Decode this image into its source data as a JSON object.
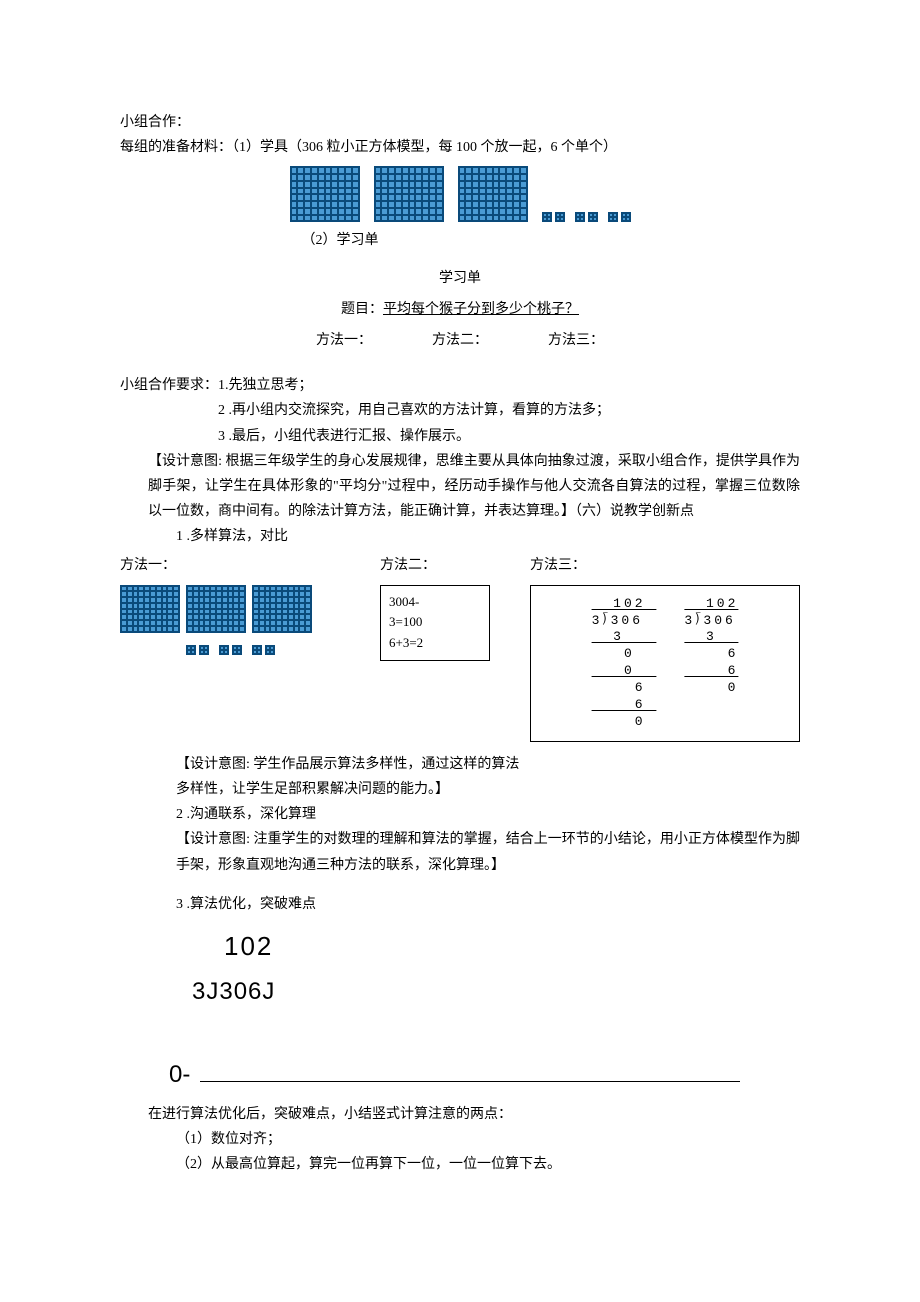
{
  "doc": {
    "line1": "小组合作：",
    "line2": "每组的准备材料：（1）学具（306 粒小正方体模型，每 100 个放一起，6 个单个）",
    "learn_label": "（2）学习单",
    "learn_title": "学习单",
    "learn_q_label": "题目：",
    "learn_q": "平均每个猴子分到多少个桃子？",
    "m1": "方法一：",
    "m2": "方法二：",
    "m3": "方法三：",
    "req_label": "小组合作要求：",
    "req1": "1.先独立思考；",
    "req2": "2 .再小组内交流探究，用自己喜欢的方法计算，看算的方法多；",
    "req3": "3 .最后，小组代表进行汇报、操作展示。",
    "design1": "【设计意图: 根据三年级学生的身心发展规律，思维主要从具体向抽象过渡，采取小组合作，提供学具作为脚手架，让学生在具体形象的\"平均分\"过程中，经历动手操作与他人交流各自算法的过程，掌握三位数除以一位数，商中间有。的除法计算方法，能正确计算，并表达算理。】（六）说教学创新点",
    "point1": "1 .多样算法，对比",
    "method2_box_l1": "3004-",
    "method2_box_l2": "3=100",
    "method2_box_l3": "6+3=2",
    "design2": "【设计意图: 学生作品展示算法多样性，通过这样的算法多样性，让学生足部积累解决问题的能力。】",
    "point2": "2 .沟通联系，深化算理",
    "design3": "【设计意图: 注重学生的对数理的理解和算法的掌握，结合上一环节的小结论，用小正方体模型作为脚手架，形象直观地沟通三种方法的联系，深化算理。】",
    "point3": "3 .算法优化，突破难点",
    "big_102": "102",
    "big_under": "3J306J",
    "zero": "0-",
    "conclude": "在进行算法优化后，突破难点，小结竖式计算注意的两点：",
    "c1": "（1）数位对齐；",
    "c2": "（2）从最高位算起，算完一位再算下一位，一位一位算下去。"
  },
  "grids": {
    "cells": 80,
    "grid_color": "#0a4a7a",
    "fill_color": "#4a9bd4",
    "big_count": 3,
    "pair_count": 3
  },
  "longdiv": {
    "left": {
      "l1": "  102 ",
      "l2": "3⟌306 ",
      "l3": "  3   ",
      "l4": "   0  ",
      "l5": "   0  ",
      "l6": "    6 ",
      "l7": "    6 ",
      "l8": "    0 "
    },
    "right": {
      "l1": "  102",
      "l2": "3⟌306",
      "l3": "  3  ",
      "l4": "    6",
      "l5": "    6",
      "l6": "    0"
    }
  }
}
